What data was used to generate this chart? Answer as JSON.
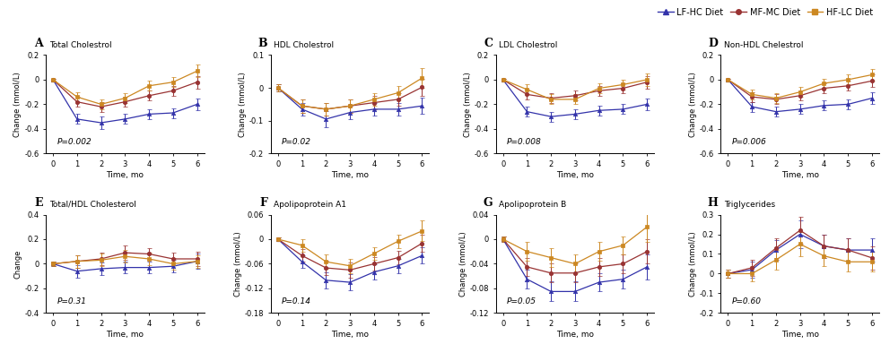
{
  "time": [
    0,
    1,
    2,
    3,
    4,
    5,
    6
  ],
  "colors": {
    "LF-HC": "#3333aa",
    "MF-MC": "#993333",
    "HF-LC": "#cc8822"
  },
  "markers": {
    "LF-HC": "^",
    "MF-MC": "o",
    "HF-LC": "s"
  },
  "panels": [
    {
      "label": "A",
      "title": "Total Cholestrol",
      "ylabel": "Change (mmol/L)",
      "pval": "P=0.002",
      "ylim": [
        -0.6,
        0.2
      ],
      "yticks": [
        -0.6,
        -0.4,
        -0.2,
        0.0,
        0.2
      ],
      "data": {
        "LF-HC": {
          "y": [
            0.0,
            -0.32,
            -0.35,
            -0.32,
            -0.28,
            -0.27,
            -0.2
          ],
          "err": [
            0.01,
            0.04,
            0.05,
            0.04,
            0.04,
            0.04,
            0.05
          ]
        },
        "MF-MC": {
          "y": [
            0.0,
            -0.18,
            -0.22,
            -0.18,
            -0.13,
            -0.09,
            -0.02
          ],
          "err": [
            0.01,
            0.04,
            0.04,
            0.04,
            0.04,
            0.04,
            0.05
          ]
        },
        "HF-LC": {
          "y": [
            0.0,
            -0.14,
            -0.2,
            -0.15,
            -0.05,
            -0.02,
            0.07
          ],
          "err": [
            0.01,
            0.04,
            0.04,
            0.04,
            0.04,
            0.04,
            0.05
          ]
        }
      }
    },
    {
      "label": "B",
      "title": "HDL Cholestrol",
      "ylabel": "Change (mmol/L)",
      "pval": "P=0.02",
      "ylim": [
        -0.2,
        0.1
      ],
      "yticks": [
        -0.2,
        -0.1,
        0.0,
        0.1
      ],
      "data": {
        "LF-HC": {
          "y": [
            0.0,
            -0.065,
            -0.095,
            -0.075,
            -0.065,
            -0.065,
            -0.055
          ],
          "err": [
            0.01,
            0.02,
            0.025,
            0.02,
            0.02,
            0.02,
            0.025
          ]
        },
        "MF-MC": {
          "y": [
            0.0,
            -0.055,
            -0.065,
            -0.055,
            -0.045,
            -0.035,
            0.002
          ],
          "err": [
            0.01,
            0.02,
            0.02,
            0.02,
            0.02,
            0.02,
            0.025
          ]
        },
        "HF-LC": {
          "y": [
            0.0,
            -0.055,
            -0.065,
            -0.055,
            -0.035,
            -0.015,
            0.03
          ],
          "err": [
            0.01,
            0.02,
            0.02,
            0.02,
            0.02,
            0.02,
            0.03
          ]
        }
      }
    },
    {
      "label": "C",
      "title": "LDL Cholestrol",
      "ylabel": "Change (mmol/L)",
      "pval": "P=0.008",
      "ylim": [
        -0.6,
        0.2
      ],
      "yticks": [
        -0.6,
        -0.4,
        -0.2,
        0.0,
        0.2
      ],
      "data": {
        "LF-HC": {
          "y": [
            0.0,
            -0.26,
            -0.3,
            -0.28,
            -0.25,
            -0.24,
            -0.2
          ],
          "err": [
            0.01,
            0.04,
            0.04,
            0.04,
            0.04,
            0.04,
            0.05
          ]
        },
        "MF-MC": {
          "y": [
            0.0,
            -0.12,
            -0.15,
            -0.13,
            -0.09,
            -0.07,
            -0.02
          ],
          "err": [
            0.01,
            0.04,
            0.04,
            0.04,
            0.04,
            0.04,
            0.05
          ]
        },
        "HF-LC": {
          "y": [
            0.0,
            -0.08,
            -0.16,
            -0.16,
            -0.07,
            -0.04,
            0.0
          ],
          "err": [
            0.01,
            0.04,
            0.04,
            0.04,
            0.04,
            0.04,
            0.05
          ]
        }
      }
    },
    {
      "label": "D",
      "title": "Non-HDL Chelestrol",
      "ylabel": "Change (mmol/L)",
      "pval": "P=0.006",
      "ylim": [
        -0.6,
        0.2
      ],
      "yticks": [
        -0.6,
        -0.4,
        -0.2,
        0.0,
        0.2
      ],
      "data": {
        "LF-HC": {
          "y": [
            0.0,
            -0.22,
            -0.26,
            -0.24,
            -0.21,
            -0.2,
            -0.15
          ],
          "err": [
            0.01,
            0.04,
            0.04,
            0.04,
            0.04,
            0.04,
            0.05
          ]
        },
        "MF-MC": {
          "y": [
            0.0,
            -0.14,
            -0.16,
            -0.13,
            -0.07,
            -0.05,
            -0.01
          ],
          "err": [
            0.01,
            0.04,
            0.04,
            0.04,
            0.04,
            0.04,
            0.05
          ]
        },
        "HF-LC": {
          "y": [
            0.0,
            -0.12,
            -0.15,
            -0.1,
            -0.03,
            0.0,
            0.04
          ],
          "err": [
            0.01,
            0.04,
            0.04,
            0.04,
            0.04,
            0.04,
            0.05
          ]
        }
      }
    },
    {
      "label": "E",
      "title": "Total/HDL Cholesterol",
      "ylabel": "Change",
      "pval": "P=0.31",
      "ylim": [
        -0.4,
        0.4
      ],
      "yticks": [
        -0.4,
        -0.2,
        0.0,
        0.2,
        0.4
      ],
      "data": {
        "LF-HC": {
          "y": [
            0.0,
            -0.06,
            -0.04,
            -0.03,
            -0.03,
            -0.02,
            0.02
          ],
          "err": [
            0.02,
            0.05,
            0.05,
            0.05,
            0.05,
            0.05,
            0.06
          ]
        },
        "MF-MC": {
          "y": [
            0.0,
            0.02,
            0.04,
            0.09,
            0.08,
            0.04,
            0.04
          ],
          "err": [
            0.02,
            0.05,
            0.05,
            0.06,
            0.05,
            0.05,
            0.06
          ]
        },
        "HF-LC": {
          "y": [
            0.0,
            0.02,
            0.03,
            0.06,
            0.04,
            0.0,
            0.02
          ],
          "err": [
            0.02,
            0.05,
            0.05,
            0.05,
            0.05,
            0.05,
            0.05
          ]
        }
      }
    },
    {
      "label": "F",
      "title": "Apolipoprotein A1",
      "ylabel": "Change (mmol/L)",
      "pval": "P=0.14",
      "ylim": [
        -0.18,
        0.06
      ],
      "yticks": [
        -0.18,
        -0.12,
        -0.06,
        0.0,
        0.06
      ],
      "data": {
        "LF-HC": {
          "y": [
            0.0,
            -0.055,
            -0.1,
            -0.105,
            -0.08,
            -0.065,
            -0.04
          ],
          "err": [
            0.005,
            0.015,
            0.02,
            0.02,
            0.018,
            0.018,
            0.02
          ]
        },
        "MF-MC": {
          "y": [
            0.0,
            -0.04,
            -0.07,
            -0.075,
            -0.06,
            -0.045,
            -0.01
          ],
          "err": [
            0.005,
            0.015,
            0.018,
            0.018,
            0.016,
            0.016,
            0.02
          ]
        },
        "HF-LC": {
          "y": [
            0.0,
            -0.015,
            -0.055,
            -0.065,
            -0.035,
            -0.005,
            0.02
          ],
          "err": [
            0.005,
            0.015,
            0.018,
            0.018,
            0.016,
            0.016,
            0.025
          ]
        }
      }
    },
    {
      "label": "G",
      "title": "Apolipoprotein B",
      "ylabel": "Change (mmol/L)",
      "pval": "P=0.05",
      "ylim": [
        -0.12,
        0.04
      ],
      "yticks": [
        -0.12,
        -0.08,
        -0.04,
        0.0,
        0.04
      ],
      "data": {
        "LF-HC": {
          "y": [
            0.0,
            -0.065,
            -0.085,
            -0.085,
            -0.07,
            -0.065,
            -0.045
          ],
          "err": [
            0.005,
            0.015,
            0.016,
            0.016,
            0.015,
            0.015,
            0.02
          ]
        },
        "MF-MC": {
          "y": [
            0.0,
            -0.045,
            -0.055,
            -0.055,
            -0.045,
            -0.04,
            -0.02
          ],
          "err": [
            0.005,
            0.015,
            0.015,
            0.015,
            0.015,
            0.015,
            0.02
          ]
        },
        "HF-LC": {
          "y": [
            0.0,
            -0.02,
            -0.03,
            -0.04,
            -0.02,
            -0.01,
            0.02
          ],
          "err": [
            0.005,
            0.015,
            0.015,
            0.015,
            0.015,
            0.015,
            0.025
          ]
        }
      }
    },
    {
      "label": "H",
      "title": "Triglycerides",
      "ylabel": "Change (mmol/L)",
      "pval": "P=0.60",
      "ylim": [
        -0.2,
        0.3
      ],
      "yticks": [
        -0.2,
        -0.1,
        0.0,
        0.1,
        0.2,
        0.3
      ],
      "data": {
        "LF-HC": {
          "y": [
            0.0,
            0.02,
            0.12,
            0.2,
            0.14,
            0.12,
            0.12
          ],
          "err": [
            0.02,
            0.04,
            0.05,
            0.07,
            0.06,
            0.06,
            0.06
          ]
        },
        "MF-MC": {
          "y": [
            0.0,
            0.03,
            0.13,
            0.22,
            0.14,
            0.12,
            0.08
          ],
          "err": [
            0.02,
            0.04,
            0.05,
            0.07,
            0.06,
            0.06,
            0.06
          ]
        },
        "HF-LC": {
          "y": [
            0.0,
            0.0,
            0.07,
            0.15,
            0.09,
            0.06,
            0.06
          ],
          "err": [
            0.02,
            0.04,
            0.05,
            0.06,
            0.05,
            0.05,
            0.05
          ]
        }
      }
    }
  ]
}
